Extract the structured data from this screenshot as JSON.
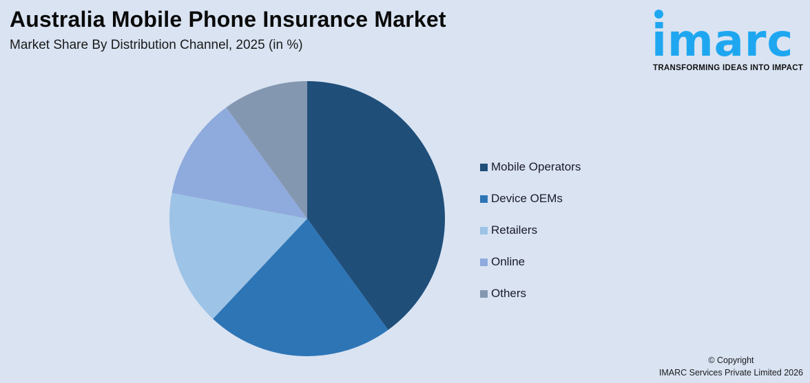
{
  "header": {
    "title": "Australia Mobile Phone Insurance Market",
    "subtitle": "Market Share By Distribution Channel, 2025 (in %)"
  },
  "logo": {
    "wordmark": "imarc",
    "tagline": "TRANSFORMING IDEAS INTO IMPACT",
    "color": "#1ea7f0"
  },
  "legend": {
    "items": [
      {
        "label": "Mobile Operators",
        "color": "#1f4e79"
      },
      {
        "label": "Device OEMs",
        "color": "#2e75b6"
      },
      {
        "label": "Retailers",
        "color": "#9dc3e6"
      },
      {
        "label": "Online",
        "color": "#8faadc"
      },
      {
        "label": "Others",
        "color": "#8497b0"
      }
    ]
  },
  "footer": {
    "copyright_line1": "© Copyright",
    "copyright_line2": "IMARC Services Private Limited 2026"
  },
  "chart_data": {
    "type": "pie",
    "title": "Australia Mobile Phone Insurance Market",
    "subtitle": "Market Share By Distribution Channel, 2025 (in %)",
    "categories": [
      "Mobile Operators",
      "Device OEMs",
      "Retailers",
      "Online",
      "Others"
    ],
    "values": [
      40,
      22,
      16,
      12,
      10
    ],
    "colors": [
      "#1f4e79",
      "#2e75b6",
      "#9dc3e6",
      "#8faadc",
      "#8497b0"
    ],
    "start_angle": "12 o'clock, clockwise",
    "legend_position": "right",
    "data_labels": false
  }
}
